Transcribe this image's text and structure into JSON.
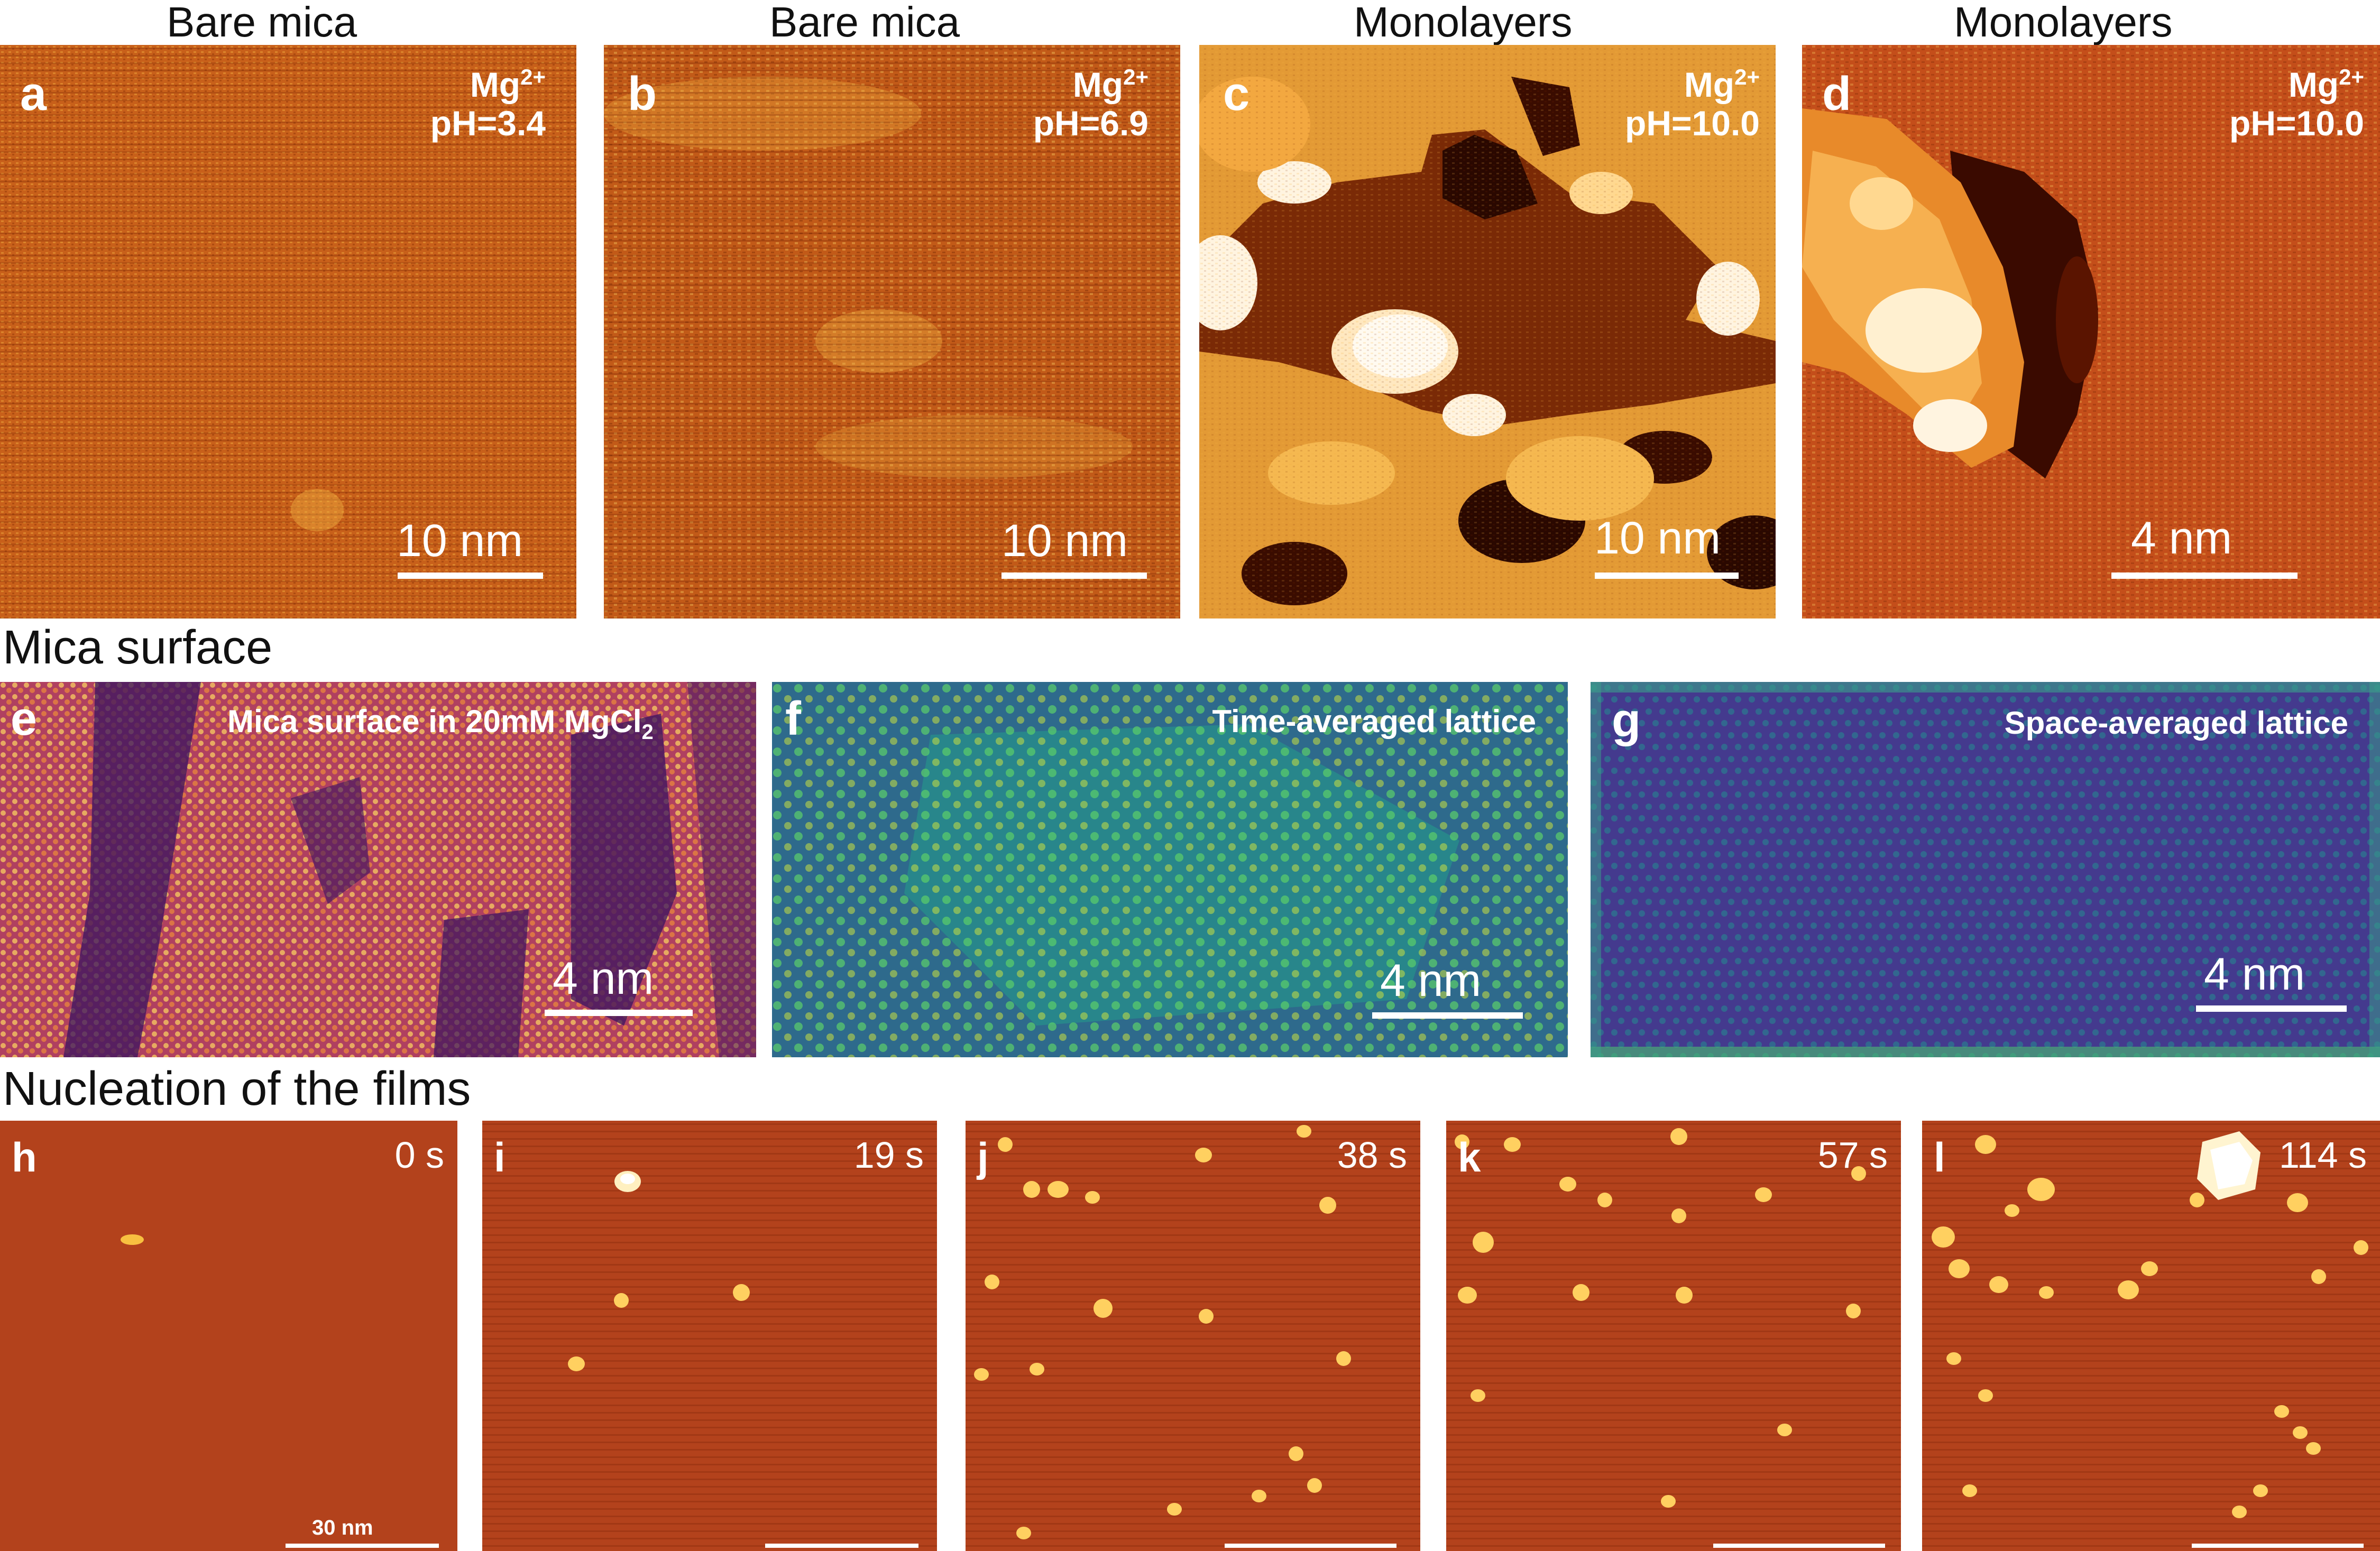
{
  "row1": {
    "panels": [
      {
        "label": "a",
        "title": "Bare mica",
        "ion": "Mg",
        "ion_charge": "2+",
        "ph": "pH=3.4",
        "scale": "10 nm"
      },
      {
        "label": "b",
        "title": "Bare mica",
        "ion": "Mg",
        "ion_charge": "2+",
        "ph": "pH=6.9",
        "scale": "10 nm"
      },
      {
        "label": "c",
        "title": "Monolayers",
        "ion": "Mg",
        "ion_charge": "2+",
        "ph": "pH=10.0",
        "scale": "10 nm"
      },
      {
        "label": "d",
        "title": "Monolayers",
        "ion": "Mg",
        "ion_charge": "2+",
        "ph": "pH=10.0",
        "scale": "4 nm"
      }
    ]
  },
  "row2": {
    "section_title": "Mica surface",
    "panels": [
      {
        "label": "e",
        "caption_pre": "Mica surface in 20mM MgCl",
        "caption_sub": "2",
        "scale": "4 nm"
      },
      {
        "label": "f",
        "caption_pre": "Time-averaged lattice",
        "caption_sub": "",
        "scale": "4 nm"
      },
      {
        "label": "g",
        "caption_pre": "Space-averaged lattice",
        "caption_sub": "",
        "scale": "4 nm"
      }
    ]
  },
  "row3": {
    "section_title": "Nucleation of the films",
    "panels": [
      {
        "label": "h",
        "time": "0 s",
        "scale": "30 nm"
      },
      {
        "label": "i",
        "time": "19 s",
        "scale": ""
      },
      {
        "label": "j",
        "time": "38 s",
        "scale": ""
      },
      {
        "label": "k",
        "time": "57 s",
        "scale": ""
      },
      {
        "label": "l",
        "time": "114 s",
        "scale": ""
      }
    ]
  },
  "colors": {
    "afm_base": "#c8601a",
    "afm_bright": "#f0b040",
    "afm_dark": "#5a1800",
    "mica_purple": "#3a1460",
    "viridis_teal": "#2a8a8a",
    "viridis_blue": "#3a4a90",
    "nucleation_base": "#b0401a"
  }
}
